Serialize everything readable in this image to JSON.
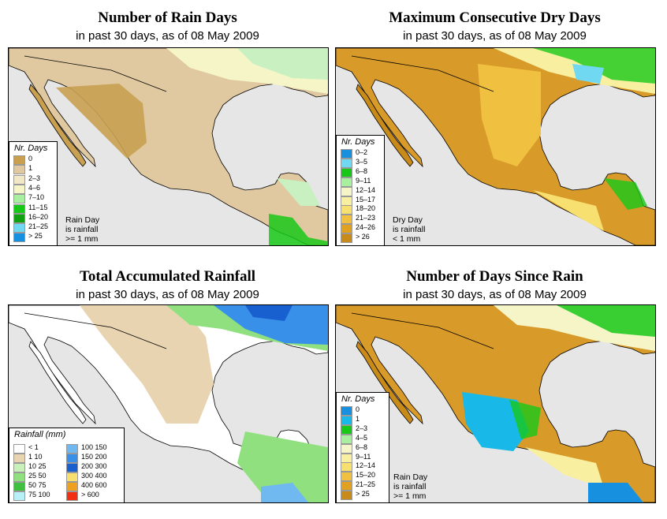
{
  "panels": {
    "rain_days": {
      "title": "Number of Rain Days",
      "subtitle": "in past 30 days, as of  08 May 2009",
      "legend_title": "Nr. Days",
      "legend": [
        {
          "label": "0",
          "color": "#c8a050"
        },
        {
          "label": "1",
          "color": "#e0c8a0"
        },
        {
          "label": "2–3",
          "color": "#f2e8c8"
        },
        {
          "label": "4–6",
          "color": "#f5f5c8"
        },
        {
          "label": "7–10",
          "color": "#a8f0a0"
        },
        {
          "label": "11–15",
          "color": "#18c818"
        },
        {
          "label": "16–20",
          "color": "#10a010"
        },
        {
          "label": "21–25",
          "color": "#70d8f0"
        },
        {
          "label": "> 25",
          "color": "#1890e0"
        }
      ],
      "note": [
        "Rain Day",
        "is rainfall",
        ">= 1 mm"
      ]
    },
    "dry_days": {
      "title": "Maximum Consecutive Dry Days",
      "subtitle": "in past 30 days, as of  08 May 2009",
      "legend_title": "Nr. Days",
      "legend": [
        {
          "label": "0–2",
          "color": "#1890e0"
        },
        {
          "label": "3–5",
          "color": "#70d8f0"
        },
        {
          "label": "6–8",
          "color": "#18c818"
        },
        {
          "label": "9–11",
          "color": "#a8f0a0"
        },
        {
          "label": "12–14",
          "color": "#f5f5c8"
        },
        {
          "label": "15–17",
          "color": "#f8f0a0"
        },
        {
          "label": "18–20",
          "color": "#f8e070"
        },
        {
          "label": "21–23",
          "color": "#f0c040"
        },
        {
          "label": "24–26",
          "color": "#e0a020"
        },
        {
          "label": "> 26",
          "color": "#c88a18"
        }
      ],
      "note": [
        "Dry Day",
        "is rainfall",
        "< 1 mm"
      ]
    },
    "rainfall": {
      "title": "Total Accumulated Rainfall",
      "subtitle": "in past 30 days, as of  08 May 2009",
      "legend_title": "Rainfall (mm)",
      "legend_left": [
        {
          "label": "< 1",
          "color": "#ffffff"
        },
        {
          "label": "1   10",
          "color": "#e8d4b0"
        },
        {
          "label": "10   25",
          "color": "#c8f0b8"
        },
        {
          "label": "25   50",
          "color": "#90e080"
        },
        {
          "label": "50   75",
          "color": "#40c040"
        },
        {
          "label": "75  100",
          "color": "#b8f0f8"
        }
      ],
      "legend_right": [
        {
          "label": "100  150",
          "color": "#70b8f0"
        },
        {
          "label": "150  200",
          "color": "#3890e8"
        },
        {
          "label": "200  300",
          "color": "#1860d0"
        },
        {
          "label": "300  400",
          "color": "#f8e070"
        },
        {
          "label": "400  600",
          "color": "#f0a020"
        },
        {
          "label": "> 600",
          "color": "#f03010"
        }
      ]
    },
    "since_rain": {
      "title": "Number of Days Since Rain",
      "subtitle": "in past 30 days, as of  08 May 2009",
      "legend_title": "Nr. Days",
      "legend": [
        {
          "label": "0",
          "color": "#1890e0"
        },
        {
          "label": "1",
          "color": "#18b8e8"
        },
        {
          "label": "2–3",
          "color": "#18c818"
        },
        {
          "label": "4–5",
          "color": "#a8f0a0"
        },
        {
          "label": "6–8",
          "color": "#f5f5c8"
        },
        {
          "label": "9–11",
          "color": "#f8f0a0"
        },
        {
          "label": "12–14",
          "color": "#f8e070"
        },
        {
          "label": "15–20",
          "color": "#f0c040"
        },
        {
          "label": "21–25",
          "color": "#e0a020"
        },
        {
          "label": "> 25",
          "color": "#c88a18"
        }
      ],
      "note": [
        "Rain Day",
        "is rainfall",
        ">= 1 mm"
      ]
    }
  },
  "colors": {
    "ocean": "#e6e6e6",
    "border": "#000000"
  }
}
